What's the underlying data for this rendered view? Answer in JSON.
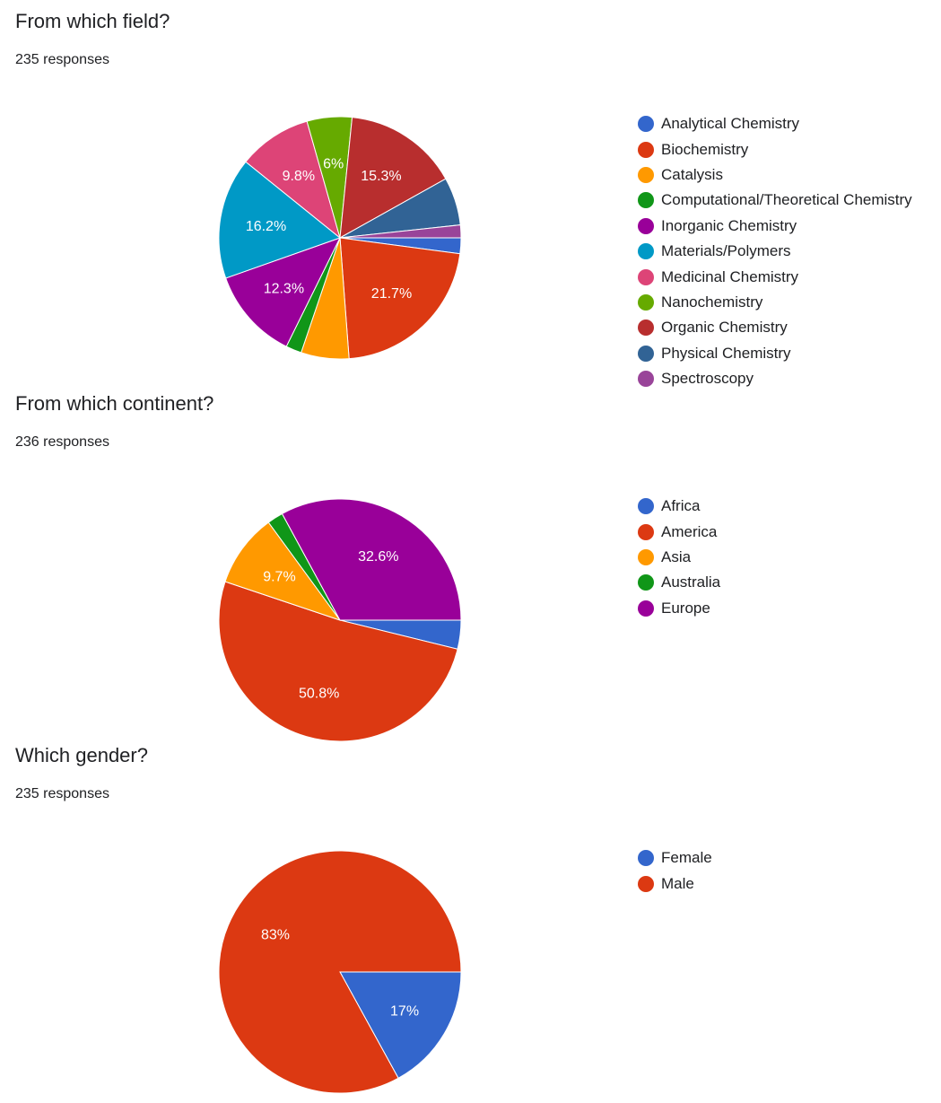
{
  "sections": [
    {
      "title": "From which field?",
      "responses": "235 responses"
    },
    {
      "title": "From which continent?",
      "responses": "236 responses"
    },
    {
      "title": "Which gender?",
      "responses": "235 responses"
    }
  ],
  "chart_data": [
    {
      "type": "pie",
      "title": "From which field?",
      "start_angle_deg": 90,
      "legend_position": "right",
      "slices": [
        {
          "label": "Analytical Chemistry",
          "value": 2.1,
          "color": "#3366cc",
          "display": ""
        },
        {
          "label": "Biochemistry",
          "value": 21.7,
          "color": "#dc3912",
          "display": "21.7%"
        },
        {
          "label": "Catalysis",
          "value": 6.4,
          "color": "#ff9900",
          "display": ""
        },
        {
          "label": "Computational/Theoretical Chemistry",
          "value": 2.1,
          "color": "#109618",
          "display": ""
        },
        {
          "label": "Inorganic Chemistry",
          "value": 12.3,
          "color": "#990099",
          "display": "12.3%"
        },
        {
          "label": "Materials/Polymers",
          "value": 16.2,
          "color": "#0099c6",
          "display": "16.2%"
        },
        {
          "label": "Medicinal Chemistry",
          "value": 9.8,
          "color": "#dd4477",
          "display": "9.8%"
        },
        {
          "label": "Nanochemistry",
          "value": 6.0,
          "color": "#66aa00",
          "display": "6%"
        },
        {
          "label": "Organic Chemistry",
          "value": 15.3,
          "color": "#b82e2e",
          "display": "15.3%"
        },
        {
          "label": "Physical Chemistry",
          "value": 6.4,
          "color": "#316395",
          "display": ""
        },
        {
          "label": "Spectroscopy",
          "value": 1.7,
          "color": "#994499",
          "display": ""
        }
      ]
    },
    {
      "type": "pie",
      "title": "From which continent?",
      "start_angle_deg": 90,
      "legend_position": "right",
      "slices": [
        {
          "label": "Africa",
          "value": 3.8,
          "color": "#3366cc",
          "display": ""
        },
        {
          "label": "America",
          "value": 50.8,
          "color": "#dc3912",
          "display": "50.8%"
        },
        {
          "label": "Asia",
          "value": 9.7,
          "color": "#ff9900",
          "display": "9.7%"
        },
        {
          "label": "Australia",
          "value": 2.1,
          "color": "#109618",
          "display": ""
        },
        {
          "label": "Europe",
          "value": 32.6,
          "color": "#990099",
          "display": "32.6%"
        }
      ]
    },
    {
      "type": "pie",
      "title": "Which gender?",
      "start_angle_deg": 90,
      "legend_position": "right",
      "slices": [
        {
          "label": "Female",
          "value": 17,
          "color": "#3366cc",
          "display": "17%"
        },
        {
          "label": "Male",
          "value": 83,
          "color": "#dc3912",
          "display": "83%"
        }
      ]
    }
  ]
}
